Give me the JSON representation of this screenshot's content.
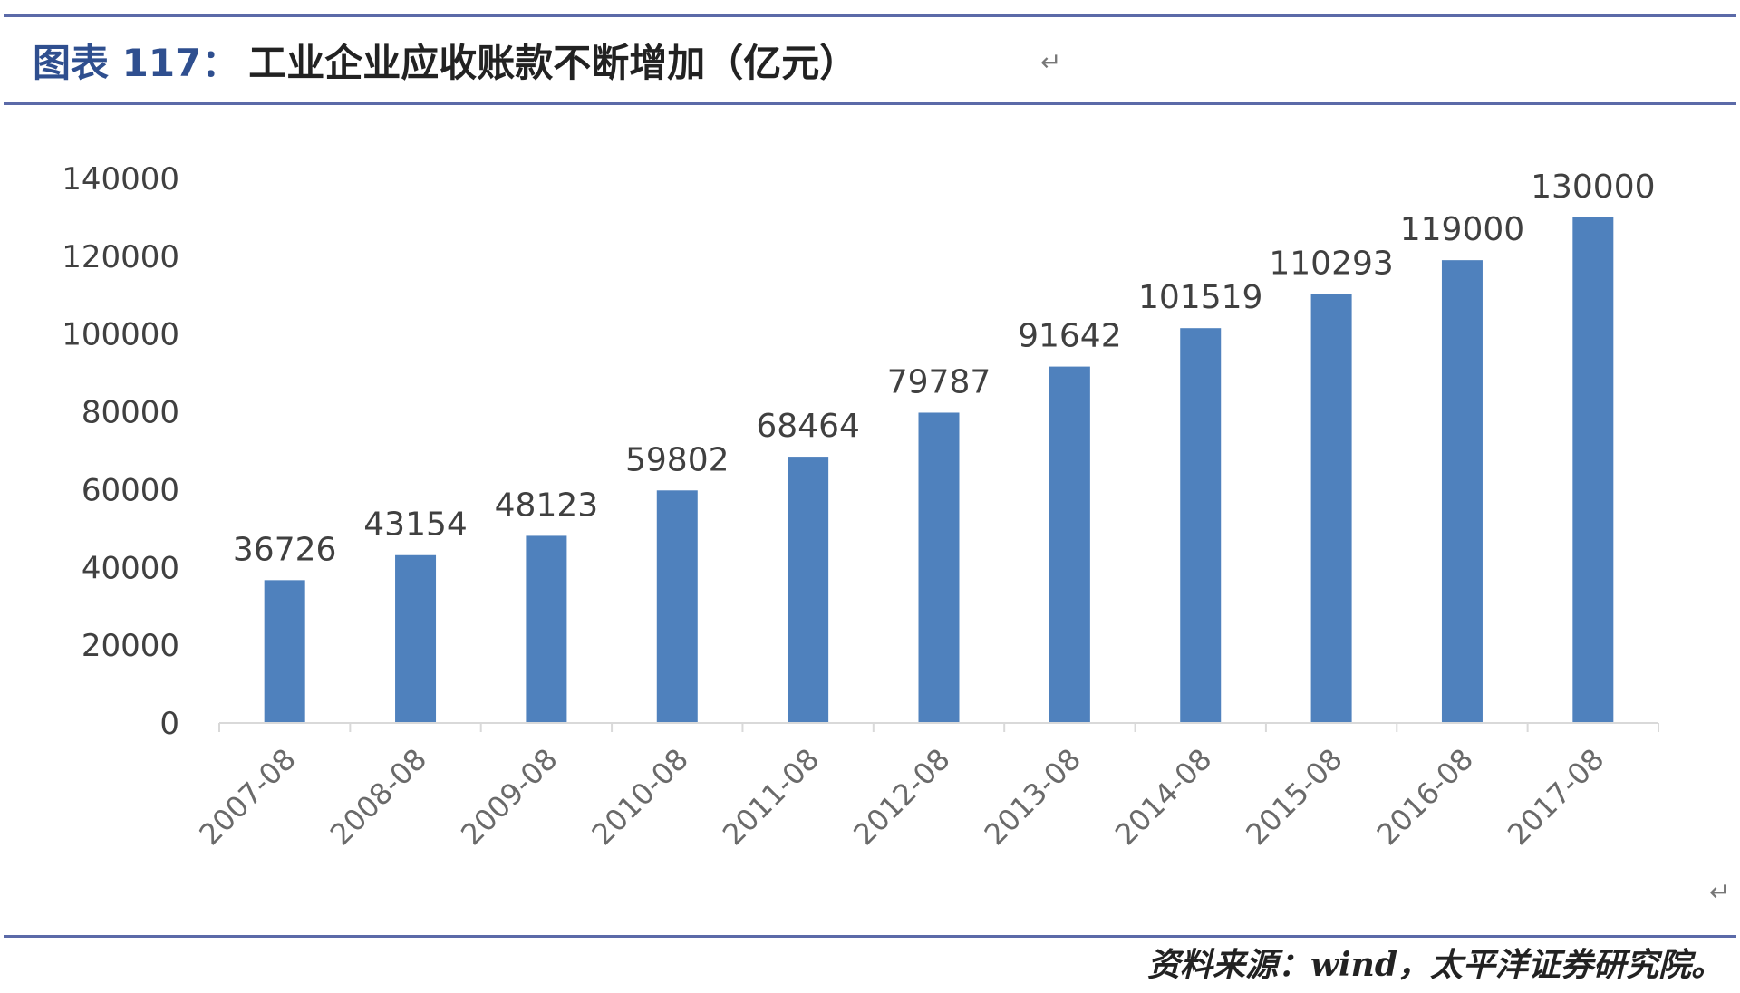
{
  "figure": {
    "label": "图表 117：",
    "title": "工业企业应收账款不断增加（亿元）",
    "paragraph_mark": "↵",
    "source": "资料来源：wind，太平洋证券研究院。"
  },
  "chart_data": {
    "type": "bar",
    "title": "工业企业应收账款不断增加（亿元）",
    "xlabel": "",
    "ylabel": "",
    "categories": [
      "2007-08",
      "2008-08",
      "2009-08",
      "2010-08",
      "2011-08",
      "2012-08",
      "2013-08",
      "2014-08",
      "2015-08",
      "2016-08",
      "2017-08"
    ],
    "values": [
      36726,
      43154,
      48123,
      59802,
      68464,
      79787,
      91642,
      101519,
      110293,
      119000,
      130000
    ],
    "ylim": [
      0,
      140000
    ],
    "yticks": [
      0,
      20000,
      40000,
      60000,
      80000,
      100000,
      120000,
      140000
    ],
    "data_labels": true,
    "grid": false,
    "legend": "none",
    "bar_color": "#4f81bd",
    "axis_color": "#d9d9d9",
    "label_color": "#404040"
  }
}
